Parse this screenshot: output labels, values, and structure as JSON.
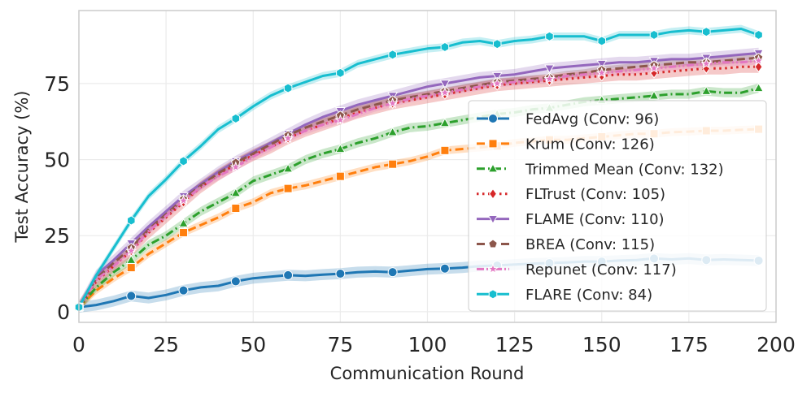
{
  "chart_data": {
    "type": "line",
    "title": "",
    "xlabel": "Communication Round",
    "ylabel": "Test Accuracy (%)",
    "xlim": [
      0,
      200
    ],
    "ylim": [
      -3.5,
      99
    ],
    "xticks": [
      0,
      25,
      50,
      75,
      100,
      125,
      150,
      175,
      200
    ],
    "yticks": [
      0,
      25,
      50,
      75
    ],
    "grid": true,
    "legend_position": "center-right",
    "series": [
      {
        "name": "FedAvg (Conv: 96)",
        "color": "#1f77b4",
        "dash": "solid",
        "marker": "circle",
        "x": [
          0,
          5,
          10,
          15,
          20,
          25,
          30,
          35,
          40,
          45,
          50,
          55,
          60,
          65,
          70,
          75,
          80,
          85,
          90,
          95,
          100,
          105,
          110,
          115,
          120,
          125,
          130,
          135,
          140,
          145,
          150,
          155,
          160,
          165,
          170,
          175,
          180,
          185,
          190,
          195
        ],
        "y": [
          1.5,
          2.2,
          3.5,
          5.2,
          4.5,
          5.5,
          7,
          8,
          8.5,
          10,
          11,
          11.5,
          12,
          11.8,
          12.2,
          12.5,
          13,
          13.2,
          13,
          13.5,
          14,
          14.2,
          14.5,
          15,
          15.2,
          15.5,
          15.8,
          16,
          16.2,
          16.5,
          16.5,
          16.8,
          17,
          17.5,
          17.2,
          17.5,
          17,
          17.2,
          17,
          16.8
        ],
        "band": 1.8
      },
      {
        "name": "Krum (Conv: 126)",
        "color": "#ff7f0e",
        "dash": "dashed",
        "marker": "square",
        "x": [
          0,
          5,
          10,
          15,
          20,
          25,
          30,
          35,
          40,
          45,
          50,
          55,
          60,
          65,
          70,
          75,
          80,
          85,
          90,
          95,
          100,
          105,
          110,
          115,
          120,
          125,
          130,
          135,
          140,
          145,
          150,
          155,
          160,
          165,
          170,
          175,
          180,
          185,
          190,
          195
        ],
        "y": [
          1.5,
          7,
          11,
          14.5,
          19,
          22.5,
          26,
          28.5,
          31,
          34,
          36,
          39,
          40.5,
          41.5,
          43,
          44.5,
          46,
          47.5,
          48.5,
          49.5,
          51,
          53,
          53.5,
          54,
          54.5,
          55.5,
          56,
          56.5,
          56.5,
          57,
          57.5,
          58,
          58.5,
          58.5,
          59,
          59.2,
          59.5,
          59.5,
          59.8,
          60
        ],
        "band": 1.3
      },
      {
        "name": "Trimmed Mean (Conv: 132)",
        "color": "#2ca02c",
        "dash": "dashdot",
        "marker": "triangle",
        "x": [
          0,
          5,
          10,
          15,
          20,
          25,
          30,
          35,
          40,
          45,
          50,
          55,
          60,
          65,
          70,
          75,
          80,
          85,
          90,
          95,
          100,
          105,
          110,
          115,
          120,
          125,
          130,
          135,
          140,
          145,
          150,
          155,
          160,
          165,
          170,
          175,
          180,
          185,
          190,
          195
        ],
        "y": [
          1.5,
          8,
          13,
          17,
          22,
          25,
          29,
          33,
          36,
          39,
          43,
          45,
          47,
          50,
          52,
          53.5,
          55.5,
          57,
          59,
          60.5,
          61,
          62,
          63,
          64,
          65,
          65.5,
          66.5,
          67,
          68,
          69,
          69.5,
          70,
          70.5,
          71,
          71.5,
          71.5,
          72.5,
          72,
          72,
          73.5
        ],
        "band": 1.5
      },
      {
        "name": "FLTrust (Conv: 105)",
        "color": "#d62728",
        "dash": "dotted",
        "marker": "diamond",
        "x": [
          0,
          5,
          10,
          15,
          20,
          25,
          30,
          35,
          40,
          45,
          50,
          55,
          60,
          65,
          70,
          75,
          80,
          85,
          90,
          95,
          100,
          105,
          110,
          115,
          120,
          125,
          130,
          135,
          140,
          145,
          150,
          155,
          160,
          165,
          170,
          175,
          180,
          185,
          190,
          195
        ],
        "y": [
          1.5,
          10,
          15,
          20,
          26,
          31,
          36,
          41,
          45,
          48.5,
          51.5,
          54,
          57,
          59.5,
          61.5,
          63.5,
          65.5,
          67,
          68.5,
          69.5,
          70.5,
          71.5,
          72.5,
          73.5,
          74.5,
          75,
          75.5,
          76,
          76.5,
          77,
          77.5,
          78,
          78,
          78.5,
          79,
          79.5,
          80,
          80,
          80.5,
          80.5
        ],
        "band": 2.0
      },
      {
        "name": "FLAME (Conv: 110)",
        "color": "#9467bd",
        "dash": "solid",
        "marker": "triangle-down",
        "x": [
          0,
          5,
          10,
          15,
          20,
          25,
          30,
          35,
          40,
          45,
          50,
          55,
          60,
          65,
          70,
          75,
          80,
          85,
          90,
          95,
          100,
          105,
          110,
          115,
          120,
          125,
          130,
          135,
          140,
          145,
          150,
          155,
          160,
          165,
          170,
          175,
          180,
          185,
          190,
          195
        ],
        "y": [
          1.5,
          12,
          17,
          22.5,
          28,
          33,
          38,
          42,
          46,
          49.5,
          52.5,
          55.5,
          58.5,
          61.5,
          64,
          66,
          68,
          69.5,
          71,
          72.5,
          74,
          75,
          76,
          77,
          77.5,
          78,
          79,
          80,
          80.5,
          81,
          81.5,
          82,
          82,
          82.5,
          83,
          83,
          83.5,
          84,
          84.5,
          85
        ],
        "band": 1.8
      },
      {
        "name": "BREA (Conv: 115)",
        "color": "#8c564b",
        "dash": "dashed",
        "marker": "pentagon",
        "x": [
          0,
          5,
          10,
          15,
          20,
          25,
          30,
          35,
          40,
          45,
          50,
          55,
          60,
          65,
          70,
          75,
          80,
          85,
          90,
          95,
          100,
          105,
          110,
          115,
          120,
          125,
          130,
          135,
          140,
          145,
          150,
          155,
          160,
          165,
          170,
          175,
          180,
          185,
          190,
          195
        ],
        "y": [
          1.5,
          11,
          16,
          21,
          27,
          32,
          37,
          41.5,
          45.5,
          49,
          52,
          55,
          58,
          60.5,
          62.5,
          64.5,
          66.5,
          68,
          69.5,
          70.5,
          71.5,
          72.5,
          73.5,
          74.5,
          75.5,
          76,
          76.5,
          77,
          78,
          78.5,
          79.5,
          80,
          80.5,
          81,
          81.5,
          82,
          82,
          82.5,
          83,
          83.5
        ],
        "band": 1.2
      },
      {
        "name": "Repunet (Conv: 117)",
        "color": "#e377c2",
        "dash": "dashdotdot",
        "marker": "star",
        "x": [
          0,
          5,
          10,
          15,
          20,
          25,
          30,
          35,
          40,
          45,
          50,
          55,
          60,
          65,
          70,
          75,
          80,
          85,
          90,
          95,
          100,
          105,
          110,
          115,
          120,
          125,
          130,
          135,
          140,
          145,
          150,
          155,
          160,
          165,
          170,
          175,
          180,
          185,
          190,
          195
        ],
        "y": [
          1.5,
          10.5,
          15,
          20,
          26.5,
          31.5,
          36.5,
          41,
          44.5,
          47.5,
          51,
          54,
          57,
          59.5,
          61.5,
          63,
          65,
          67,
          68.5,
          70,
          71,
          72,
          73,
          74,
          75,
          75.5,
          76,
          76.5,
          77.5,
          78,
          78.5,
          79,
          79.5,
          80,
          80.5,
          81,
          81.5,
          82,
          82,
          82.5
        ],
        "band": 1.2
      },
      {
        "name": "FLARE (Conv: 84)",
        "color": "#17becf",
        "dash": "solid",
        "marker": "hexagon",
        "x": [
          0,
          5,
          10,
          15,
          20,
          25,
          30,
          35,
          40,
          45,
          50,
          55,
          60,
          65,
          70,
          75,
          80,
          85,
          90,
          95,
          100,
          105,
          110,
          115,
          120,
          125,
          130,
          135,
          140,
          145,
          150,
          155,
          160,
          165,
          170,
          175,
          180,
          185,
          190,
          195
        ],
        "y": [
          1.5,
          12,
          21,
          30,
          38,
          43.5,
          49.5,
          54.5,
          60,
          63.5,
          67.5,
          71,
          73.5,
          75.5,
          77.5,
          78.5,
          81.5,
          83,
          84.5,
          85.5,
          86.5,
          87,
          88.5,
          89,
          88,
          89,
          89.5,
          90.5,
          90.5,
          90.5,
          89,
          91,
          91,
          91,
          92,
          92.5,
          92,
          92.5,
          93,
          91
        ],
        "band": 1.3
      }
    ],
    "marker_x": [
      0,
      15,
      30,
      45,
      60,
      75,
      90,
      105,
      120,
      135,
      150,
      165,
      180,
      195
    ]
  }
}
